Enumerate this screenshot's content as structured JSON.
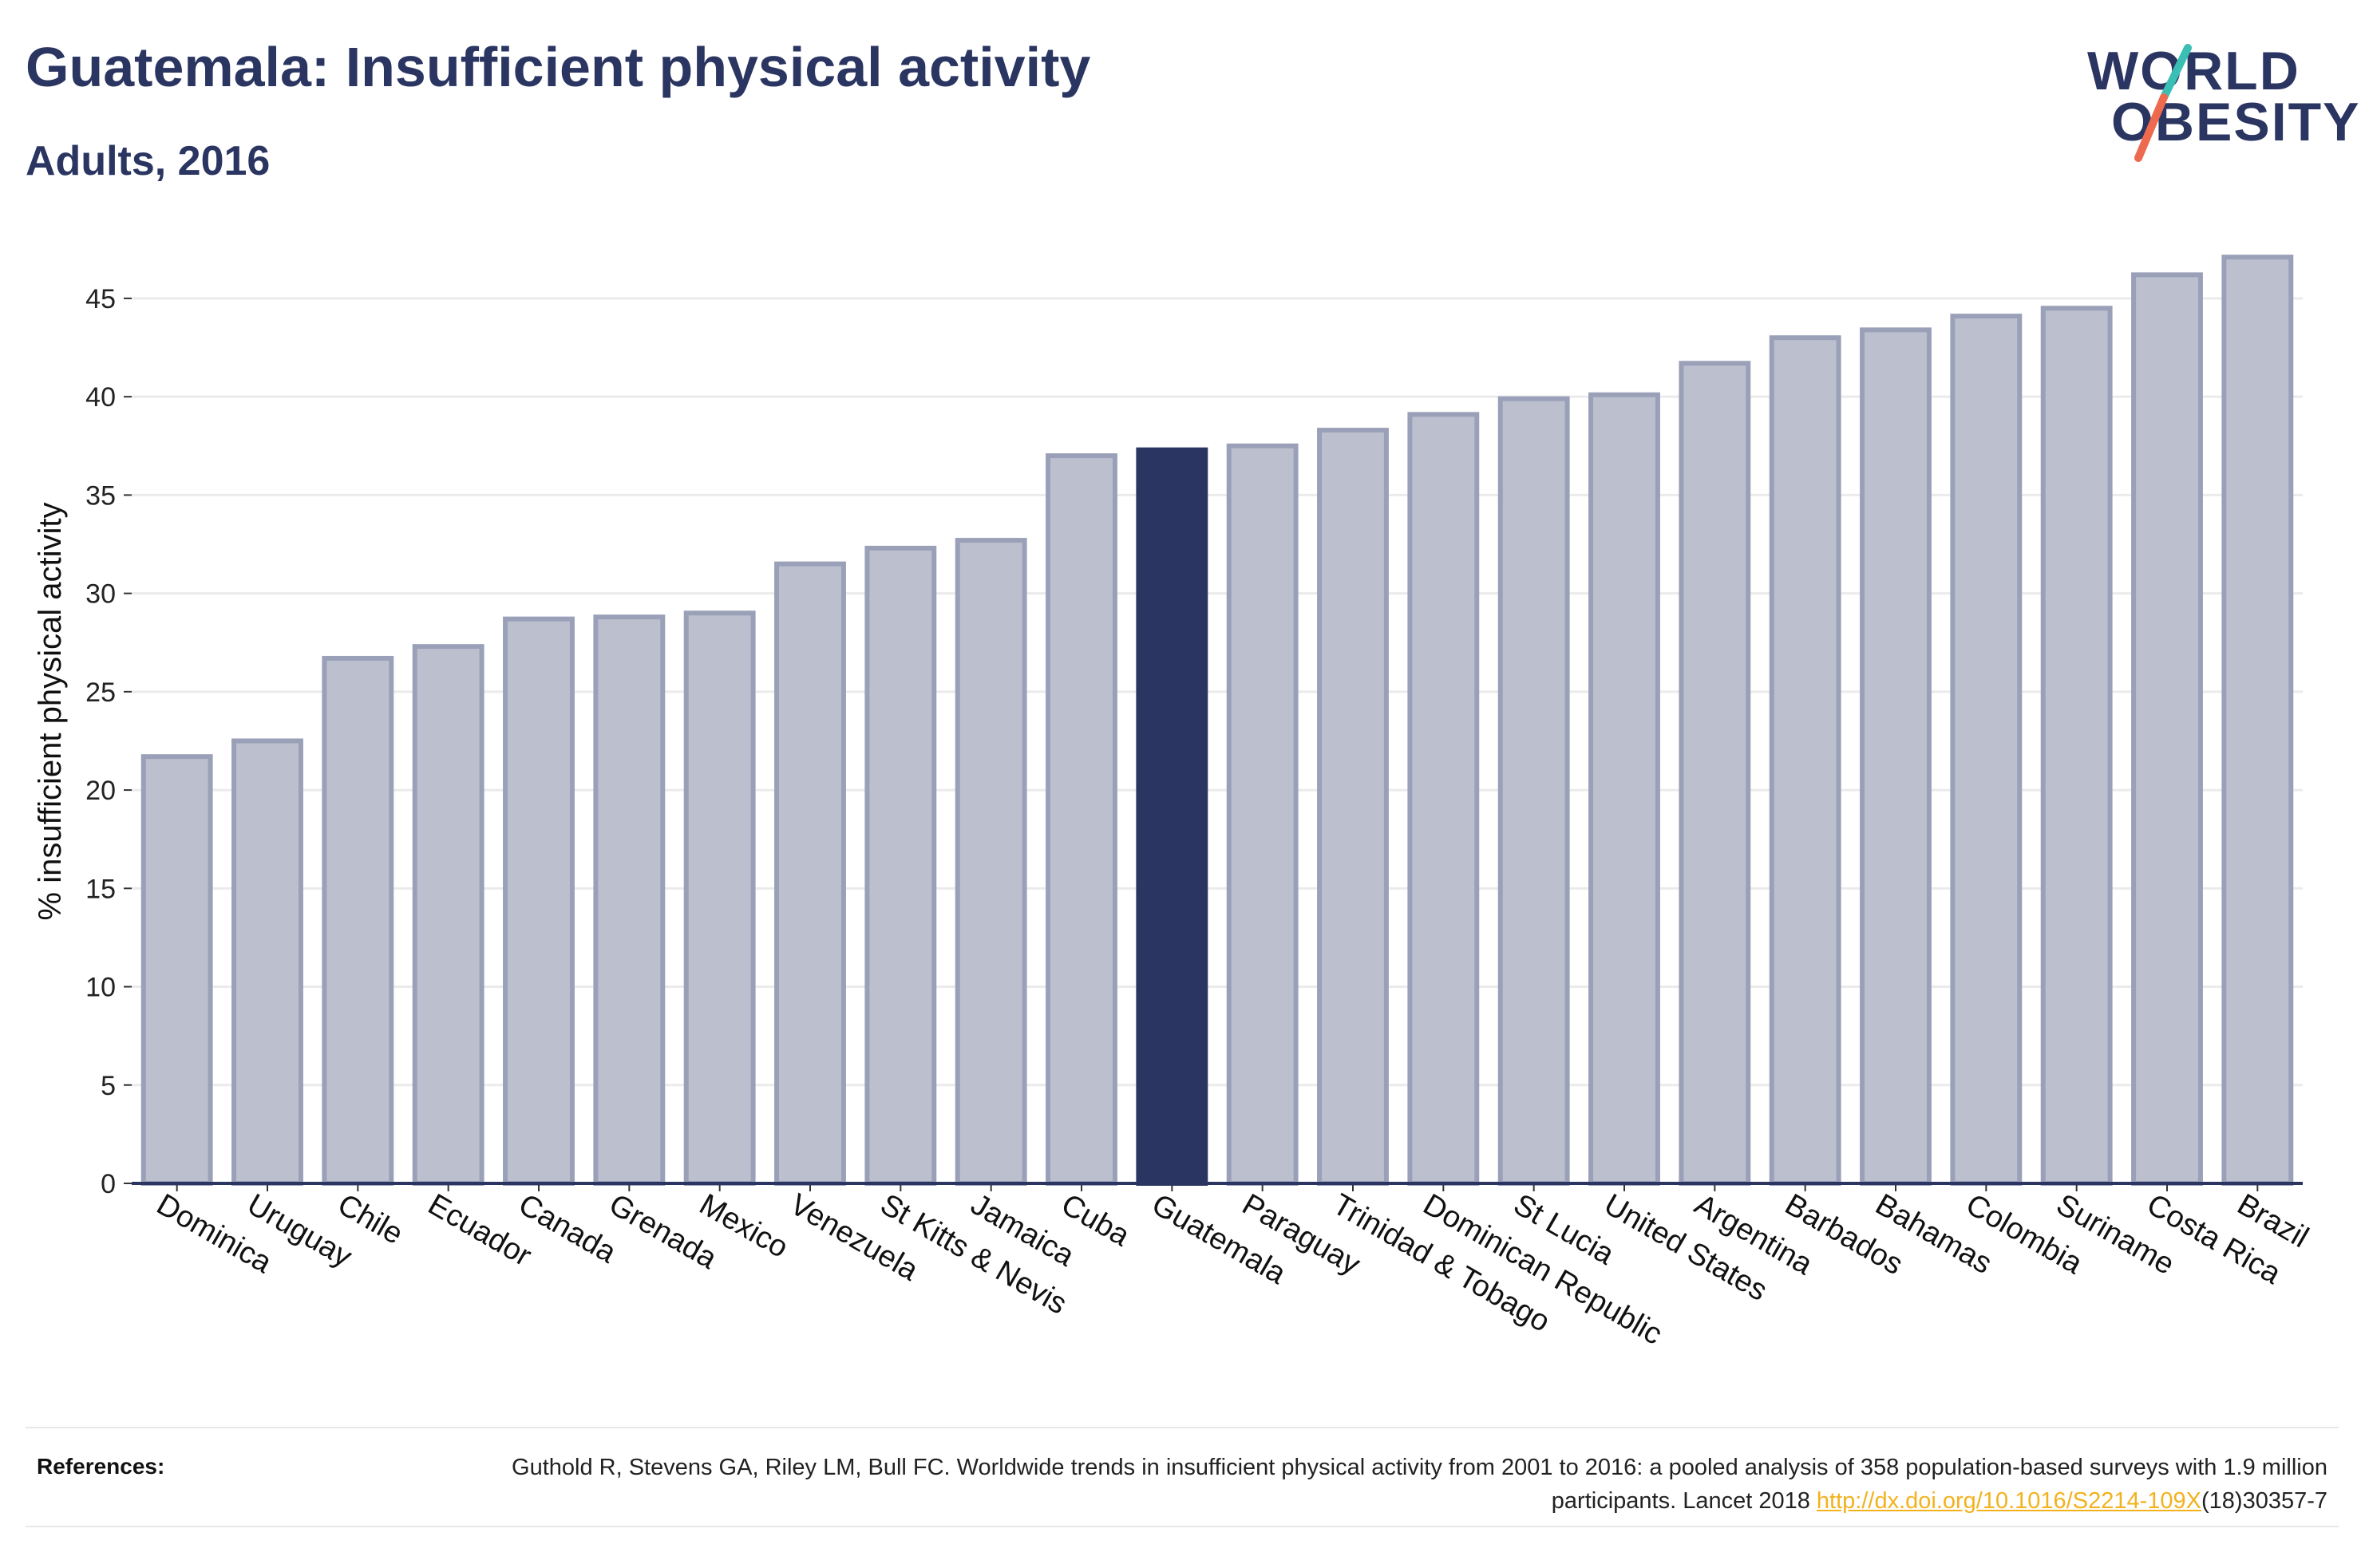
{
  "header": {
    "title": "Guatemala: Insufficient physical activity",
    "subtitle": "Adults, 2016"
  },
  "logo": {
    "line1": "WORLD",
    "line2": "OBESITY",
    "colors": {
      "text": "#2a3561",
      "slash_top": "#3bbfb4",
      "slash_bottom": "#ee6a4f"
    }
  },
  "chart_data": {
    "type": "bar",
    "title": "",
    "xlabel": "",
    "ylabel": "% insufficient physical activity",
    "ylim": [
      0,
      48
    ],
    "yticks": [
      0,
      5,
      10,
      15,
      20,
      25,
      30,
      35,
      40,
      45
    ],
    "grid": true,
    "highlight": "Guatemala",
    "colors": {
      "bar": "#bcc0ce",
      "bar_border": "#9aa0b8",
      "highlight": "#2a3561",
      "grid": "#ebebeb",
      "axis": "#2a3561"
    },
    "categories": [
      "Dominica",
      "Uruguay",
      "Chile",
      "Ecuador",
      "Canada",
      "Grenada",
      "Mexico",
      "Venezuela",
      "St Kitts & Nevis",
      "Jamaica",
      "Cuba",
      "Guatemala",
      "Paraguay",
      "Trinidad & Tobago",
      "Dominican Republic",
      "St Lucia",
      "United States",
      "Argentina",
      "Barbados",
      "Bahamas",
      "Colombia",
      "Suriname",
      "Costa Rica",
      "Brazil"
    ],
    "values": [
      21.7,
      22.5,
      26.7,
      27.3,
      28.7,
      28.8,
      29.0,
      31.5,
      32.3,
      32.7,
      37.0,
      37.3,
      37.5,
      38.3,
      39.1,
      39.9,
      40.1,
      41.7,
      43.0,
      43.4,
      44.1,
      44.5,
      46.2,
      47.1
    ]
  },
  "references": {
    "label": "References:",
    "text_before": "Guthold R, Stevens GA, Riley LM, Bull FC. Worldwide trends in insufficient physical activity from 2001 to 2016: a pooled analysis of 358 population-based surveys with 1.9 million participants. Lancet 2018 ",
    "link_text": "http://dx.doi.org/10.1016/S2214-109X",
    "text_after": "(18)30357-7"
  }
}
